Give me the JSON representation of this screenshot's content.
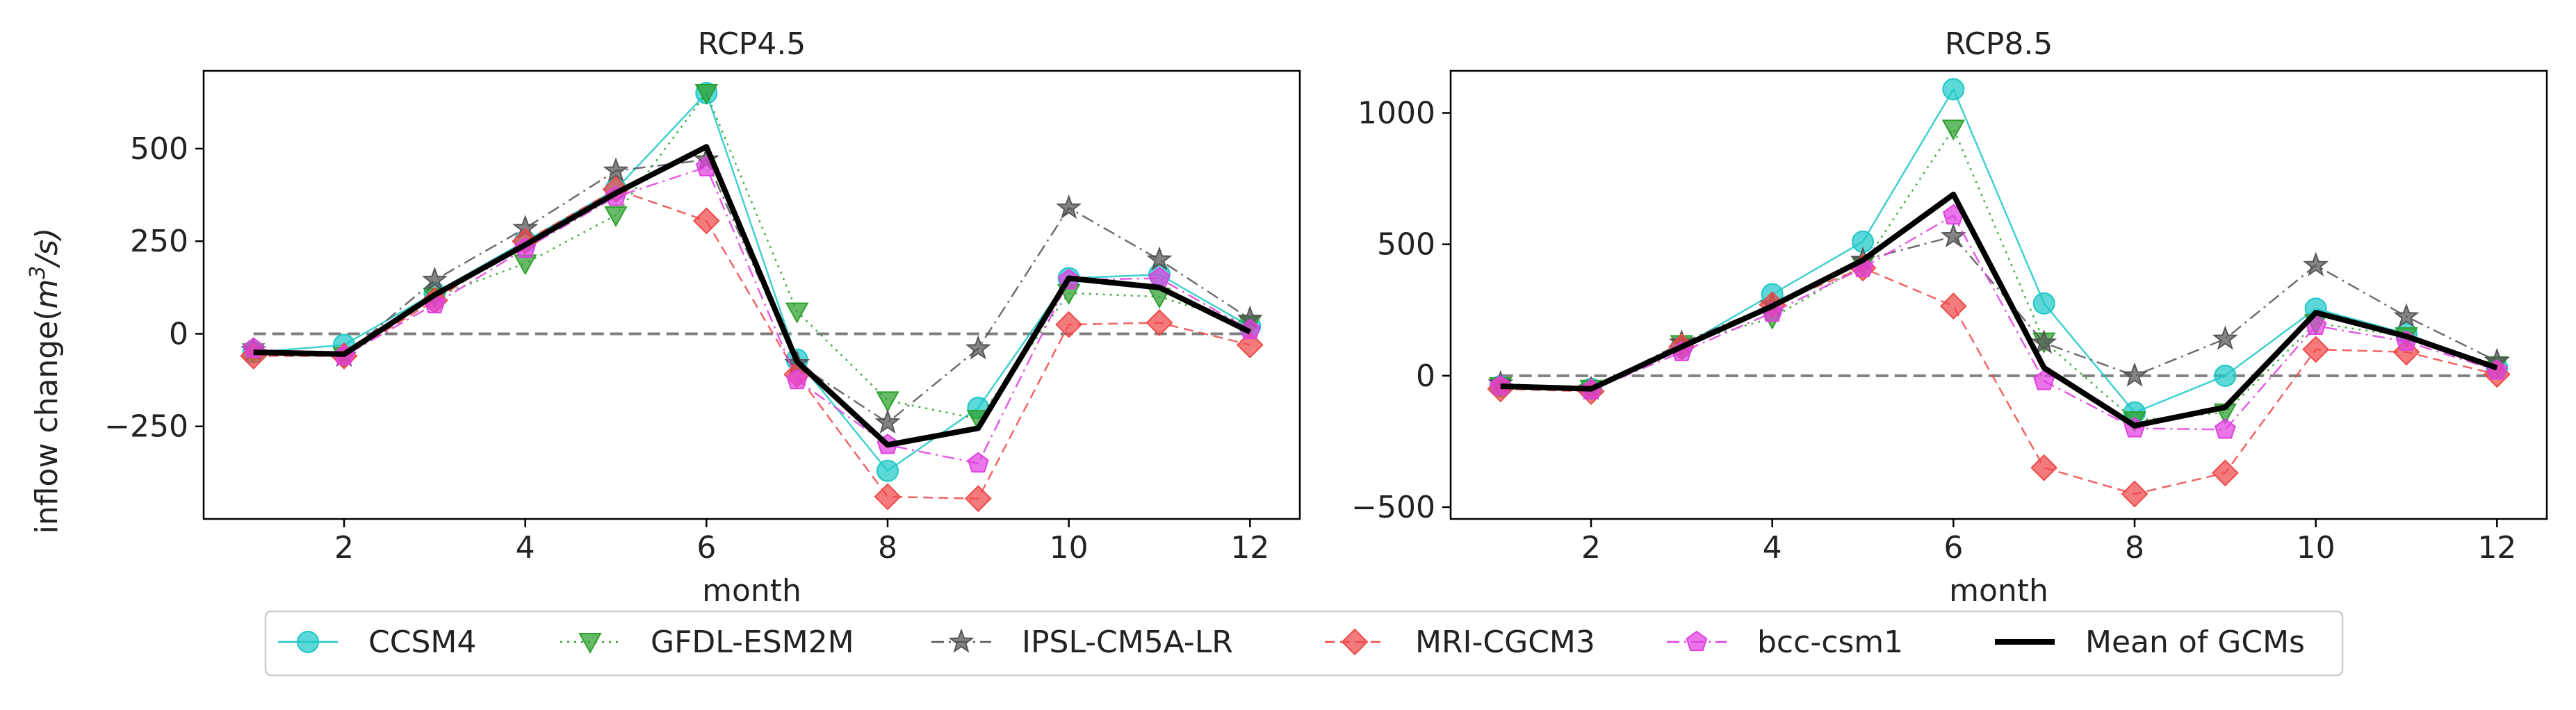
{
  "figure": {
    "ylabel_prefix": "inflow change(",
    "ylabel_base": "m",
    "ylabel_sup": "3",
    "ylabel_suffix": "/s)",
    "baseline_color": "#808080",
    "mean_color": "#000000"
  },
  "legend": {
    "entries": [
      {
        "name": "CCSM4",
        "color": "#1ec8c8",
        "marker": "circle",
        "dash": "solid"
      },
      {
        "name": "GFDL-ESM2M",
        "color": "#2ca02c",
        "marker": "triangle-down",
        "dash": "dotted"
      },
      {
        "name": "IPSL-CM5A-LR",
        "color": "#555555",
        "marker": "star",
        "dash": "dashdot"
      },
      {
        "name": "MRI-CGCM3",
        "color": "#f04848",
        "marker": "diamond",
        "dash": "dashed"
      },
      {
        "name": "bcc-csm1",
        "color": "#e040e0",
        "marker": "pentagon",
        "dash": "dashdot"
      },
      {
        "name": "Mean of GCMs",
        "color": "#000000",
        "marker": "none",
        "dash": "solid-thick"
      }
    ]
  },
  "chart_data": [
    {
      "type": "line",
      "title": "RCP4.5",
      "xlabel": "month",
      "ylabel": "inflow change(m^3/s)",
      "x": [
        1,
        2,
        3,
        4,
        5,
        6,
        7,
        8,
        9,
        10,
        11,
        12
      ],
      "xticks": [
        2,
        4,
        6,
        8,
        10,
        12
      ],
      "xlim": [
        0.45,
        12.55
      ],
      "yticks": [
        -250,
        0,
        250,
        500
      ],
      "ytick_labels": [
        "−250",
        "0",
        "250",
        "500"
      ],
      "ylim": [
        -500,
        710
      ],
      "baseline": 0,
      "series": [
        {
          "name": "CCSM4",
          "values": [
            -50,
            -30,
            110,
            250,
            390,
            650,
            -70,
            -370,
            -200,
            150,
            160,
            20
          ]
        },
        {
          "name": "GFDL-ESM2M",
          "values": [
            -50,
            -60,
            100,
            190,
            320,
            650,
            60,
            -180,
            -230,
            110,
            100,
            25
          ]
        },
        {
          "name": "IPSL-CM5A-LR",
          "values": [
            -45,
            -60,
            145,
            285,
            440,
            470,
            -80,
            -240,
            -40,
            340,
            200,
            40
          ]
        },
        {
          "name": "MRI-CGCM3",
          "values": [
            -60,
            -60,
            90,
            250,
            390,
            305,
            -110,
            -440,
            -445,
            25,
            30,
            -30
          ]
        },
        {
          "name": "bcc-csm1",
          "values": [
            -40,
            -60,
            80,
            230,
            370,
            450,
            -125,
            -300,
            -350,
            145,
            150,
            10
          ]
        },
        {
          "name": "Mean of GCMs",
          "values": [
            -50,
            -55,
            105,
            240,
            380,
            505,
            -75,
            -300,
            -255,
            150,
            125,
            5
          ]
        }
      ]
    },
    {
      "type": "line",
      "title": "RCP8.5",
      "xlabel": "month",
      "ylabel": "",
      "x": [
        1,
        2,
        3,
        4,
        5,
        6,
        7,
        8,
        9,
        10,
        11,
        12
      ],
      "xticks": [
        2,
        4,
        6,
        8,
        10,
        12
      ],
      "xlim": [
        0.45,
        12.55
      ],
      "yticks": [
        -500,
        0,
        500,
        1000
      ],
      "ytick_labels": [
        "−500",
        "0",
        "500",
        "1000"
      ],
      "ylim": [
        -545,
        1160
      ],
      "baseline": 0,
      "series": [
        {
          "name": "CCSM4",
          "values": [
            -40,
            -50,
            110,
            310,
            510,
            1090,
            275,
            -140,
            0,
            255,
            160,
            30
          ]
        },
        {
          "name": "GFDL-ESM2M",
          "values": [
            -40,
            -50,
            120,
            220,
            420,
            940,
            130,
            -170,
            -140,
            200,
            150,
            40
          ]
        },
        {
          "name": "IPSL-CM5A-LR",
          "values": [
            -30,
            -50,
            125,
            270,
            440,
            530,
            125,
            0,
            140,
            420,
            225,
            55
          ]
        },
        {
          "name": "MRI-CGCM3",
          "values": [
            -50,
            -60,
            110,
            270,
            410,
            265,
            -350,
            -450,
            -370,
            100,
            90,
            5
          ]
        },
        {
          "name": "bcc-csm1",
          "values": [
            -40,
            -55,
            90,
            240,
            410,
            610,
            -20,
            -200,
            -205,
            190,
            130,
            20
          ]
        },
        {
          "name": "Mean of GCMs",
          "values": [
            -40,
            -50,
            110,
            265,
            440,
            690,
            30,
            -190,
            -120,
            240,
            150,
            30
          ]
        }
      ]
    }
  ]
}
